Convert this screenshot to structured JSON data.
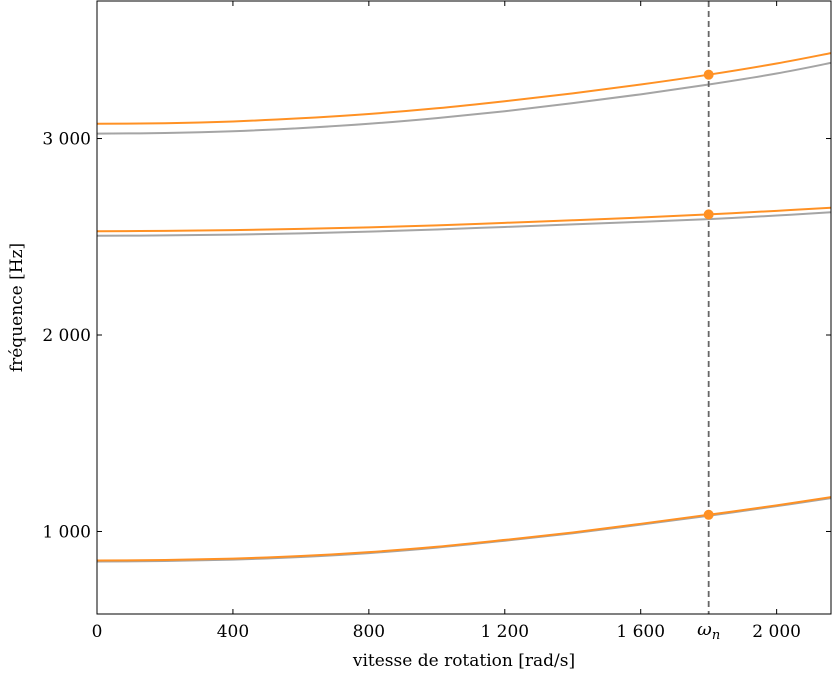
{
  "chart_data": {
    "type": "line",
    "xlabel": "vitesse de rotation [rad/s]",
    "ylabel": "fréquence [Hz]",
    "xlim": [
      0,
      2160
    ],
    "ylim": [
      580,
      3700
    ],
    "xticks": [
      0,
      400,
      800,
      1200,
      1600,
      2000
    ],
    "xtick_labels": [
      "0",
      "400",
      "800",
      "1 200",
      "1 600",
      "2 000"
    ],
    "yticks": [
      1000,
      2000,
      3000
    ],
    "ytick_labels": [
      "1 000",
      "2 000",
      "3 000"
    ],
    "grid": false,
    "vline": {
      "x": 1800,
      "label": "ω",
      "label_sub": "n",
      "style": "dashed",
      "color": "#666666"
    },
    "series": [
      {
        "color": "#a5a5a5",
        "x": [
          0,
          200,
          400,
          600,
          800,
          1000,
          1200,
          1400,
          1600,
          1800,
          2000,
          2160
        ],
        "values": [
          847,
          850,
          857,
          870,
          890,
          918,
          953,
          991,
          1035,
          1080,
          1129,
          1170
        ]
      },
      {
        "color": "#ff9124",
        "x": [
          0,
          200,
          400,
          600,
          800,
          1000,
          1200,
          1400,
          1600,
          1800,
          2000,
          2160
        ],
        "values": [
          852,
          855,
          862,
          875,
          895,
          922,
          957,
          995,
          1039,
          1085,
          1133,
          1175
        ]
      },
      {
        "color": "#a5a5a5",
        "x": [
          0,
          200,
          400,
          600,
          800,
          1000,
          1200,
          1400,
          1600,
          1800,
          2000,
          2160
        ],
        "values": [
          2505,
          2507,
          2511,
          2517,
          2526,
          2537,
          2550,
          2563,
          2576,
          2590,
          2608,
          2625
        ]
      },
      {
        "color": "#ff9124",
        "x": [
          0,
          200,
          400,
          600,
          800,
          1000,
          1200,
          1400,
          1600,
          1800,
          2000,
          2160
        ],
        "values": [
          2528,
          2530,
          2534,
          2540,
          2548,
          2558,
          2571,
          2584,
          2598,
          2614,
          2632,
          2648
        ]
      },
      {
        "color": "#a5a5a5",
        "x": [
          0,
          200,
          400,
          600,
          800,
          1000,
          1200,
          1400,
          1600,
          1800,
          2000,
          2160
        ],
        "values": [
          3025,
          3028,
          3037,
          3053,
          3075,
          3104,
          3139,
          3180,
          3225,
          3275,
          3331,
          3385
        ]
      },
      {
        "color": "#ff9124",
        "x": [
          0,
          200,
          400,
          600,
          800,
          1000,
          1200,
          1400,
          1600,
          1800,
          2000,
          2160
        ],
        "values": [
          3075,
          3078,
          3087,
          3103,
          3125,
          3154,
          3190,
          3230,
          3275,
          3325,
          3382,
          3435
        ]
      }
    ],
    "markers": [
      {
        "x": 1800,
        "y": 1085,
        "color": "#ff9124"
      },
      {
        "x": 1800,
        "y": 2614,
        "color": "#ff9124"
      },
      {
        "x": 1800,
        "y": 3325,
        "color": "#ff9124"
      }
    ]
  }
}
